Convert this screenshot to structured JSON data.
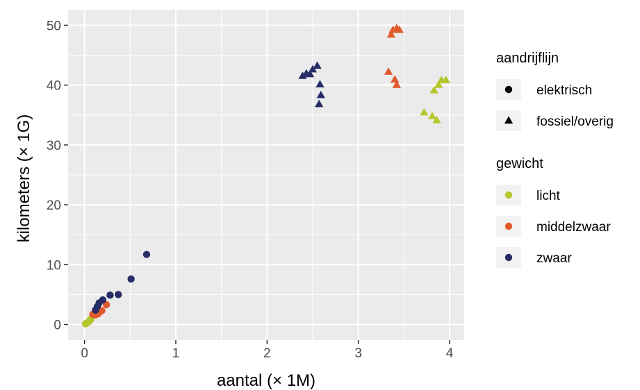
{
  "chart_data": {
    "type": "scatter",
    "xlabel": "aantal (× 1M)",
    "ylabel": "kilometers (× 1G)",
    "xlim": [
      -0.18,
      4.16
    ],
    "ylim": [
      -2.6,
      52.6
    ],
    "x_ticks": [
      0,
      1,
      2,
      3,
      4
    ],
    "x_tick_labels": [
      "0",
      "1",
      "2",
      "3",
      "4"
    ],
    "y_ticks": [
      0,
      10,
      20,
      30,
      40,
      50
    ],
    "y_tick_labels": [
      "0",
      "10",
      "20",
      "30",
      "40",
      "50"
    ],
    "grid": true,
    "legend_position": "right",
    "legends": [
      {
        "title": "aandrijflijn",
        "entries": [
          {
            "label": "elektrisch",
            "shape": "circle"
          },
          {
            "label": "fossiel/overig",
            "shape": "triangle"
          }
        ]
      },
      {
        "title": "gewicht",
        "entries": [
          {
            "label": "licht",
            "color": "#b5c72c"
          },
          {
            "label": "middelzwaar",
            "color": "#e05a2b"
          },
          {
            "label": "zwaar",
            "color": "#262c66"
          }
        ]
      }
    ],
    "series": [
      {
        "weight": "licht",
        "drivetrain": "elektrisch",
        "color": "#b5c72c",
        "shape": "circle",
        "x": [
          0.01,
          0.02,
          0.03,
          0.04,
          0.05,
          0.06,
          0.07
        ],
        "y": [
          0.1,
          0.2,
          0.3,
          0.4,
          0.5,
          0.7,
          0.9
        ]
      },
      {
        "weight": "middelzwaar",
        "drivetrain": "elektrisch",
        "color": "#e05a2b",
        "shape": "circle",
        "x": [
          0.09,
          0.12,
          0.15,
          0.19,
          0.24
        ],
        "y": [
          1.7,
          1.6,
          1.8,
          2.3,
          3.3
        ]
      },
      {
        "weight": "zwaar",
        "drivetrain": "elektrisch",
        "color": "#262c66",
        "shape": "circle",
        "x": [
          0.12,
          0.14,
          0.16,
          0.2,
          0.28,
          0.37,
          0.51,
          0.68
        ],
        "y": [
          2.4,
          3.0,
          3.6,
          4.1,
          4.9,
          5.0,
          7.6,
          11.7
        ]
      },
      {
        "weight": "licht",
        "drivetrain": "fossiel/overig",
        "color": "#b5c72c",
        "shape": "triangle",
        "x": [
          3.72,
          3.81,
          3.86,
          3.83,
          3.88,
          3.91,
          3.96
        ],
        "y": [
          35.4,
          34.8,
          34.1,
          39.1,
          40.0,
          40.8,
          40.8
        ]
      },
      {
        "weight": "middelzwaar",
        "drivetrain": "fossiel/overig",
        "color": "#e05a2b",
        "shape": "triangle",
        "x": [
          3.33,
          3.4,
          3.42,
          3.36,
          3.38,
          3.42,
          3.45
        ],
        "y": [
          42.2,
          40.9,
          40.0,
          48.4,
          49.2,
          49.5,
          49.2
        ]
      },
      {
        "weight": "zwaar",
        "drivetrain": "fossiel/overig",
        "color": "#262c66",
        "shape": "triangle",
        "x": [
          2.39,
          2.43,
          2.47,
          2.5,
          2.55,
          2.58,
          2.59,
          2.57
        ],
        "y": [
          41.5,
          41.9,
          41.8,
          42.6,
          43.2,
          40.1,
          38.3,
          36.8
        ]
      }
    ]
  }
}
